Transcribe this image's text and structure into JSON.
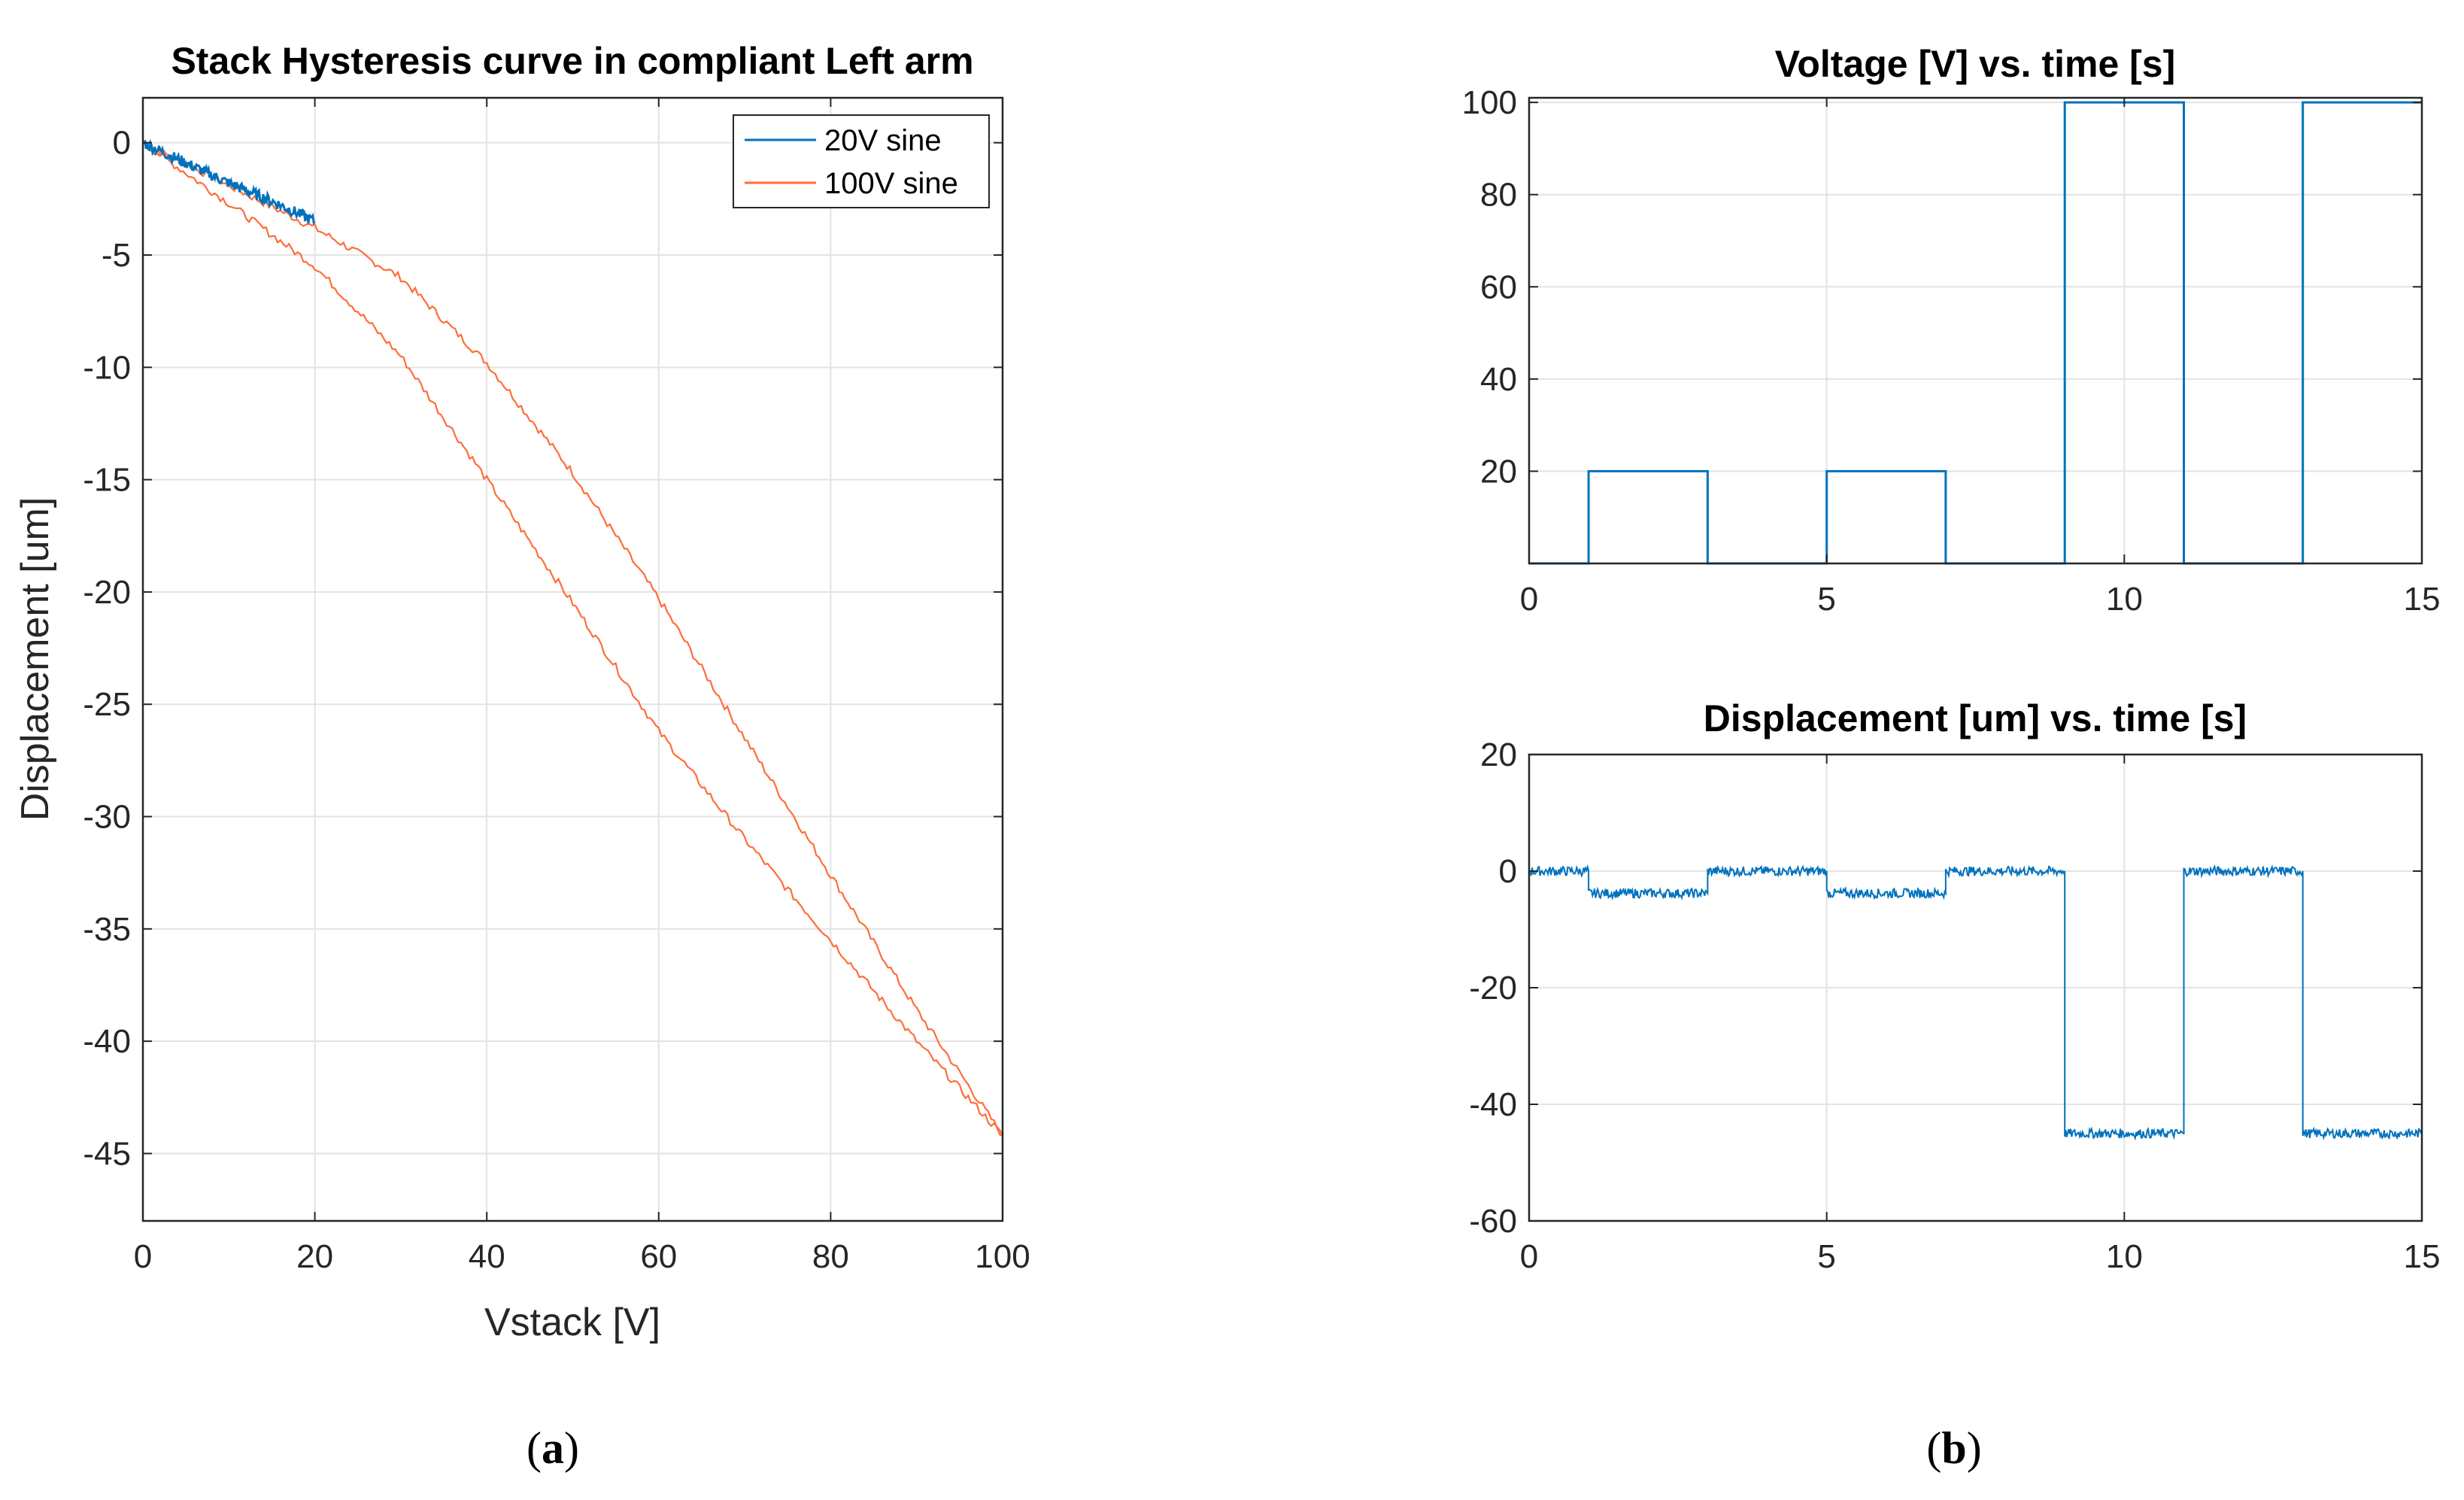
{
  "chart_data": [
    {
      "id": "a",
      "type": "line",
      "title": "Stack Hysteresis curve in compliant Left arm",
      "xlabel": "Vstack [V]",
      "ylabel": "Displacement [um]",
      "xlim": [
        0,
        100
      ],
      "ylim": [
        -48,
        2
      ],
      "xticks": [
        0,
        20,
        40,
        60,
        80,
        100
      ],
      "yticks": [
        0,
        -5,
        -10,
        -15,
        -20,
        -25,
        -30,
        -35,
        -40,
        -45
      ],
      "grid": true,
      "legend_position": "top-right",
      "caption_open": "(",
      "caption_letter": "a",
      "caption_close": ")",
      "series": [
        {
          "name": "100V sine",
          "color": "#ff6d3a",
          "loop_upper_x": [
            0,
            10,
            20,
            30,
            40,
            50,
            60,
            70,
            80,
            90,
            100
          ],
          "loop_upper_y": [
            0,
            -1.9,
            -3.8,
            -6.0,
            -9.8,
            -14.7,
            -20.3,
            -26.5,
            -32.6,
            -38.6,
            -44.2
          ],
          "loop_lower_x": [
            0,
            10,
            20,
            30,
            40,
            50,
            60,
            70,
            80,
            90,
            100
          ],
          "loop_lower_y": [
            0,
            -2.7,
            -5.5,
            -9.5,
            -15.0,
            -20.5,
            -26.2,
            -31.0,
            -35.5,
            -40.0,
            -44.2
          ]
        },
        {
          "name": "20V sine",
          "color": "#0072bd",
          "x": [
            0,
            5,
            10,
            15,
            20
          ],
          "y": [
            0,
            -0.9,
            -1.8,
            -2.6,
            -3.5
          ]
        }
      ]
    },
    {
      "id": "b-top",
      "type": "line",
      "title": "Voltage [V] vs. time [s]",
      "xlim": [
        0,
        15
      ],
      "ylim": [
        0,
        101
      ],
      "xticks": [
        0,
        5,
        10,
        15
      ],
      "yticks": [
        20,
        40,
        60,
        80,
        100
      ],
      "grid": true,
      "caption_open": "(",
      "caption_letter": "b",
      "caption_close": ")",
      "series": [
        {
          "name": "Voltage",
          "color": "#0072bd",
          "x": [
            0,
            1,
            1,
            3,
            3,
            5,
            5,
            7,
            7,
            9,
            9,
            11,
            11,
            13,
            13,
            15
          ],
          "y": [
            0,
            0,
            20,
            20,
            0,
            0,
            20,
            20,
            0,
            0,
            100,
            100,
            0,
            0,
            100,
            100
          ]
        }
      ]
    },
    {
      "id": "b-bottom",
      "type": "line",
      "title": "Displacement [um] vs. time [s]",
      "xlim": [
        0,
        15
      ],
      "ylim": [
        -60,
        20
      ],
      "xticks": [
        0,
        5,
        10,
        15
      ],
      "yticks": [
        20,
        0,
        -20,
        -40,
        -60
      ],
      "grid": true,
      "series": [
        {
          "name": "Displacement",
          "color": "#0072bd",
          "x": [
            0,
            1,
            1,
            3,
            3,
            5,
            5,
            7,
            7,
            9,
            9,
            11,
            11,
            13,
            13,
            15
          ],
          "y": [
            0,
            0,
            -3.8,
            -3.8,
            0,
            0,
            -3.8,
            -3.8,
            0,
            0,
            -45,
            -45,
            0,
            0,
            -45,
            -45
          ]
        }
      ]
    }
  ]
}
